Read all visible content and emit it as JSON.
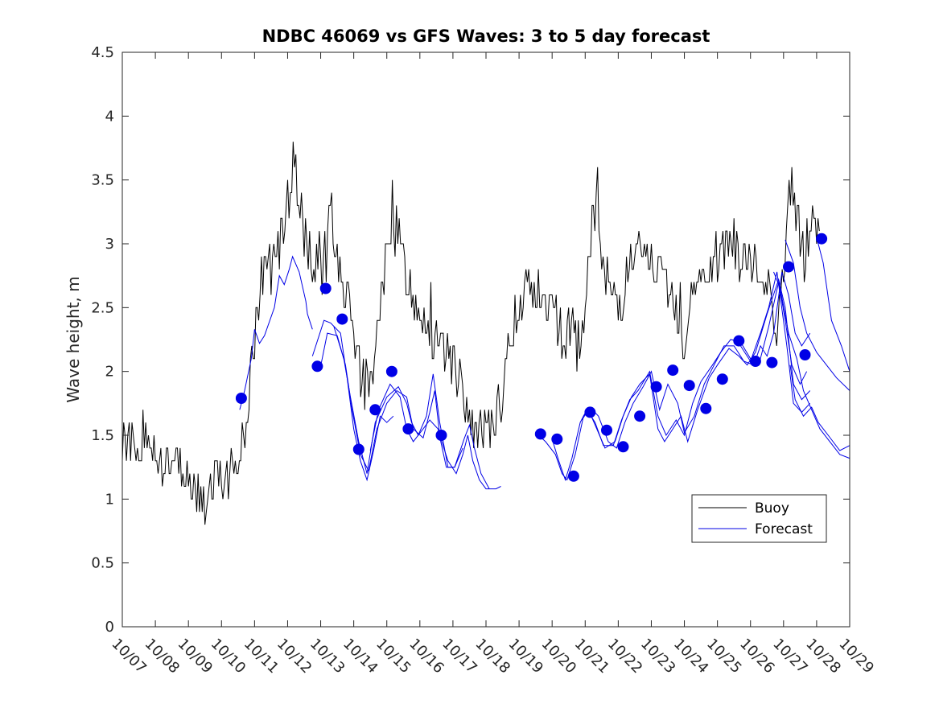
{
  "chart_data": {
    "type": "line",
    "title": "NDBC 46069 vs GFS Waves: 3 to 5 day forecast",
    "xlabel": "",
    "ylabel": "Wave height, m",
    "ylim": [
      0,
      4.5
    ],
    "yticks": [
      "0",
      "0.5",
      "1",
      "1.5",
      "2",
      "2.5",
      "3",
      "3.5",
      "4",
      "4.5"
    ],
    "xlim": [
      0,
      22
    ],
    "xtick_labels": [
      "10/07",
      "10/08",
      "10/09",
      "10/10",
      "10/11",
      "10/12",
      "10/13",
      "10/14",
      "10/15",
      "10/16",
      "10/17",
      "10/18",
      "10/19",
      "10/20",
      "10/21",
      "10/22",
      "10/23",
      "10/24",
      "10/25",
      "10/26",
      "10/27",
      "10/28",
      "10/29"
    ],
    "legend": {
      "position": "lower-right",
      "entries": [
        "Buoy",
        "Forecast"
      ]
    },
    "colors": {
      "buoy": "#000000",
      "forecast": "#0000e6",
      "axes": "#262626"
    },
    "buoy": {
      "name": "Buoy",
      "anchors": [
        [
          0,
          1.45
        ],
        [
          0.3,
          1.45
        ],
        [
          0.6,
          1.4
        ],
        [
          1,
          1.35
        ],
        [
          1.4,
          1.3
        ],
        [
          1.7,
          1.25
        ],
        [
          2,
          1.2
        ],
        [
          2.3,
          1.1
        ],
        [
          2.5,
          1.0
        ],
        [
          2.8,
          1.15
        ],
        [
          3.2,
          1.2
        ],
        [
          3.5,
          1.3
        ],
        [
          3.7,
          1.55
        ],
        [
          3.9,
          2.0
        ],
        [
          4.1,
          2.5
        ],
        [
          4.4,
          2.8
        ],
        [
          4.7,
          2.9
        ],
        [
          5,
          3.3
        ],
        [
          5.2,
          3.65
        ],
        [
          5.4,
          3.2
        ],
        [
          5.6,
          2.95
        ],
        [
          5.9,
          2.85
        ],
        [
          6.1,
          2.7
        ],
        [
          6.3,
          3.3
        ],
        [
          6.5,
          2.9
        ],
        [
          6.8,
          2.6
        ],
        [
          7.0,
          2.3
        ],
        [
          7.2,
          1.9
        ],
        [
          7.5,
          1.85
        ],
        [
          7.7,
          2.3
        ],
        [
          8.0,
          2.9
        ],
        [
          8.3,
          3.1
        ],
        [
          8.5,
          2.9
        ],
        [
          8.8,
          2.6
        ],
        [
          9.1,
          2.5
        ],
        [
          9.4,
          2.2
        ],
        [
          9.7,
          2.2
        ],
        [
          10.0,
          2.05
        ],
        [
          10.3,
          1.8
        ],
        [
          10.6,
          1.5
        ],
        [
          10.9,
          1.5
        ],
        [
          11.2,
          1.6
        ],
        [
          11.5,
          1.85
        ],
        [
          11.8,
          2.4
        ],
        [
          12.1,
          2.6
        ],
        [
          12.4,
          2.7
        ],
        [
          12.7,
          2.55
        ],
        [
          13.0,
          2.5
        ],
        [
          13.3,
          2.3
        ],
        [
          13.6,
          2.3
        ],
        [
          13.9,
          2.15
        ],
        [
          14.1,
          2.8
        ],
        [
          14.3,
          3.3
        ],
        [
          14.5,
          2.8
        ],
        [
          14.8,
          2.6
        ],
        [
          15.0,
          2.5
        ],
        [
          15.3,
          2.8
        ],
        [
          15.6,
          2.9
        ],
        [
          15.9,
          2.85
        ],
        [
          16.2,
          2.8
        ],
        [
          16.5,
          2.6
        ],
        [
          16.8,
          2.4
        ],
        [
          17.0,
          2.15
        ],
        [
          17.2,
          2.7
        ],
        [
          17.5,
          2.7
        ],
        [
          17.8,
          2.8
        ],
        [
          18.1,
          2.9
        ],
        [
          18.4,
          3.0
        ],
        [
          18.7,
          2.9
        ],
        [
          19.0,
          2.85
        ],
        [
          19.3,
          2.75
        ],
        [
          19.6,
          2.7
        ],
        [
          19.8,
          2.4
        ],
        [
          20.0,
          2.8
        ],
        [
          20.2,
          3.5
        ],
        [
          20.4,
          3.2
        ],
        [
          20.6,
          2.9
        ],
        [
          20.9,
          3.3
        ],
        [
          21.1,
          3.0
        ]
      ],
      "noise": 0.2
    },
    "forecast_segments": [
      [
        [
          3.55,
          1.7
        ],
        [
          3.7,
          1.85
        ],
        [
          3.9,
          2.1
        ],
        [
          4.0,
          2.33
        ],
        [
          4.15,
          2.22
        ],
        [
          4.3,
          2.28
        ],
        [
          4.6,
          2.5
        ],
        [
          4.75,
          2.75
        ],
        [
          4.9,
          2.68
        ],
        [
          5.05,
          2.8
        ],
        [
          5.15,
          2.9
        ],
        [
          5.35,
          2.78
        ],
        [
          5.55,
          2.55
        ],
        [
          5.6,
          2.45
        ],
        [
          5.75,
          2.33
        ]
      ],
      [
        [
          5.75,
          2.12
        ],
        [
          6.1,
          2.4
        ],
        [
          6.3,
          2.38
        ],
        [
          6.6,
          2.3
        ],
        [
          6.8,
          1.95
        ],
        [
          7.0,
          1.55
        ],
        [
          7.2,
          1.3
        ],
        [
          7.4,
          1.15
        ],
        [
          7.6,
          1.38
        ],
        [
          7.8,
          1.65
        ],
        [
          8.0,
          1.6
        ],
        [
          8.2,
          1.65
        ]
      ],
      [
        [
          6.0,
          2.04
        ],
        [
          6.2,
          2.3
        ],
        [
          6.5,
          2.28
        ],
        [
          6.75,
          2.05
        ],
        [
          6.95,
          1.7
        ],
        [
          7.2,
          1.35
        ],
        [
          7.45,
          1.22
        ],
        [
          7.7,
          1.55
        ],
        [
          8.0,
          1.75
        ],
        [
          8.3,
          1.85
        ],
        [
          8.6,
          1.8
        ],
        [
          8.8,
          1.55
        ],
        [
          9.1,
          1.48
        ],
        [
          9.3,
          1.68
        ],
        [
          9.45,
          1.85
        ],
        [
          9.6,
          1.5
        ],
        [
          9.85,
          1.3
        ],
        [
          10.1,
          1.2
        ],
        [
          10.3,
          1.35
        ],
        [
          10.45,
          1.5
        ],
        [
          10.6,
          1.3
        ],
        [
          10.8,
          1.15
        ],
        [
          11.0,
          1.08
        ],
        [
          11.3,
          1.08
        ],
        [
          11.45,
          1.1
        ]
      ],
      [
        [
          6.4,
          2.35
        ],
        [
          6.7,
          2.1
        ],
        [
          6.9,
          1.8
        ],
        [
          7.15,
          1.45
        ],
        [
          7.4,
          1.2
        ],
        [
          7.65,
          1.6
        ],
        [
          8.0,
          1.8
        ],
        [
          8.35,
          1.88
        ],
        [
          8.6,
          1.75
        ],
        [
          8.75,
          1.6
        ],
        [
          8.95,
          1.5
        ],
        [
          9.2,
          1.65
        ],
        [
          9.4,
          1.98
        ],
        [
          9.6,
          1.6
        ],
        [
          9.85,
          1.25
        ],
        [
          10.05,
          1.25
        ],
        [
          10.35,
          1.48
        ],
        [
          10.5,
          1.58
        ],
        [
          10.65,
          1.4
        ],
        [
          10.85,
          1.2
        ],
        [
          11.1,
          1.08
        ]
      ],
      [
        [
          7.5,
          1.38
        ],
        [
          7.75,
          1.7
        ],
        [
          8.1,
          1.9
        ],
        [
          8.4,
          1.8
        ],
        [
          8.6,
          1.55
        ],
        [
          8.8,
          1.45
        ],
        [
          9.1,
          1.55
        ],
        [
          9.3,
          1.62
        ],
        [
          9.55,
          1.55
        ],
        [
          9.8,
          1.25
        ],
        [
          10.05,
          1.25
        ],
        [
          10.3,
          1.4
        ]
      ],
      [
        [
          12.5,
          1.52
        ],
        [
          12.8,
          1.45
        ],
        [
          13.1,
          1.35
        ],
        [
          13.3,
          1.2
        ],
        [
          13.45,
          1.15
        ],
        [
          13.7,
          1.35
        ],
        [
          13.95,
          1.65
        ],
        [
          14.15,
          1.72
        ],
        [
          14.4,
          1.65
        ],
        [
          14.7,
          1.45
        ],
        [
          14.95,
          1.4
        ],
        [
          15.2,
          1.6
        ],
        [
          15.45,
          1.75
        ],
        [
          15.75,
          1.88
        ],
        [
          16.0,
          2.0
        ],
        [
          16.25,
          1.7
        ],
        [
          16.5,
          1.9
        ],
        [
          16.8,
          1.75
        ],
        [
          17.0,
          1.52
        ],
        [
          17.3,
          1.65
        ],
        [
          17.6,
          1.9
        ],
        [
          17.9,
          2.05
        ],
        [
          18.2,
          2.2
        ],
        [
          18.5,
          2.2
        ],
        [
          18.8,
          2.08
        ],
        [
          19.1,
          2.05
        ],
        [
          19.3,
          2.2
        ],
        [
          19.5,
          2.12
        ],
        [
          19.7,
          2.3
        ],
        [
          19.95,
          2.78
        ],
        [
          20.15,
          2.6
        ],
        [
          20.35,
          2.3
        ],
        [
          20.55,
          2.2
        ],
        [
          20.8,
          2.3
        ]
      ],
      [
        [
          13.0,
          1.47
        ],
        [
          13.2,
          1.3
        ],
        [
          13.4,
          1.15
        ],
        [
          13.6,
          1.32
        ],
        [
          13.85,
          1.6
        ],
        [
          14.05,
          1.7
        ],
        [
          14.3,
          1.6
        ],
        [
          14.55,
          1.42
        ],
        [
          14.85,
          1.42
        ],
        [
          15.1,
          1.62
        ],
        [
          15.35,
          1.78
        ],
        [
          15.6,
          1.85
        ],
        [
          15.95,
          2.0
        ],
        [
          16.2,
          1.65
        ],
        [
          16.45,
          1.5
        ],
        [
          16.75,
          1.62
        ],
        [
          17.0,
          1.5
        ],
        [
          17.25,
          1.75
        ],
        [
          17.5,
          1.92
        ],
        [
          17.85,
          2.05
        ],
        [
          18.1,
          2.15
        ],
        [
          18.4,
          2.25
        ],
        [
          18.7,
          2.23
        ],
        [
          19.0,
          2.1
        ],
        [
          19.25,
          2.05
        ],
        [
          19.55,
          2.35
        ],
        [
          19.85,
          2.7
        ],
        [
          20.05,
          2.4
        ],
        [
          20.25,
          2.05
        ],
        [
          20.5,
          1.9
        ],
        [
          20.7,
          2.0
        ]
      ],
      [
        [
          13.9,
          1.62
        ],
        [
          14.1,
          1.7
        ],
        [
          14.35,
          1.55
        ],
        [
          14.6,
          1.4
        ],
        [
          14.9,
          1.45
        ],
        [
          15.15,
          1.65
        ],
        [
          15.4,
          1.8
        ],
        [
          15.65,
          1.9
        ],
        [
          15.95,
          1.98
        ],
        [
          16.2,
          1.55
        ],
        [
          16.4,
          1.45
        ],
        [
          16.65,
          1.55
        ],
        [
          16.9,
          1.65
        ],
        [
          17.1,
          1.45
        ],
        [
          17.4,
          1.7
        ],
        [
          17.75,
          1.95
        ],
        [
          18.0,
          2.05
        ],
        [
          18.35,
          2.18
        ],
        [
          18.65,
          2.12
        ],
        [
          18.9,
          2.05
        ],
        [
          19.15,
          2.15
        ],
        [
          19.5,
          2.45
        ],
        [
          19.85,
          2.72
        ],
        [
          20.05,
          2.5
        ],
        [
          20.3,
          1.9
        ],
        [
          20.55,
          1.78
        ],
        [
          20.8,
          1.85
        ]
      ],
      [
        [
          18.7,
          2.2
        ],
        [
          19.0,
          2.08
        ],
        [
          19.3,
          2.3
        ],
        [
          19.55,
          2.5
        ],
        [
          19.8,
          2.78
        ],
        [
          20.1,
          2.2
        ],
        [
          20.3,
          1.75
        ],
        [
          20.55,
          1.68
        ],
        [
          20.8,
          1.75
        ]
      ],
      [
        [
          19.7,
          2.78
        ],
        [
          19.9,
          2.65
        ],
        [
          20.15,
          2.3
        ],
        [
          20.4,
          2.1
        ],
        [
          20.6,
          1.85
        ],
        [
          20.85,
          1.7
        ],
        [
          21.1,
          1.55
        ],
        [
          21.4,
          1.45
        ],
        [
          21.7,
          1.35
        ],
        [
          22.0,
          1.32
        ]
      ],
      [
        [
          20.2,
          2.05
        ],
        [
          20.35,
          1.78
        ],
        [
          20.6,
          1.65
        ],
        [
          20.85,
          1.72
        ],
        [
          21.05,
          1.6
        ],
        [
          21.35,
          1.5
        ],
        [
          21.7,
          1.38
        ],
        [
          22.0,
          1.42
        ]
      ],
      [
        [
          20.05,
          3.03
        ],
        [
          20.3,
          2.85
        ],
        [
          20.5,
          2.5
        ],
        [
          20.7,
          2.3
        ],
        [
          21.0,
          2.15
        ],
        [
          21.3,
          2.05
        ],
        [
          21.6,
          1.95
        ],
        [
          22.0,
          1.85
        ]
      ],
      [
        [
          21.0,
          3.05
        ],
        [
          21.2,
          2.85
        ],
        [
          21.45,
          2.4
        ],
        [
          21.75,
          2.2
        ],
        [
          22.0,
          2.0
        ]
      ]
    ],
    "forecast_markers": [
      [
        3.6,
        1.79
      ],
      [
        5.9,
        2.04
      ],
      [
        6.15,
        2.65
      ],
      [
        6.65,
        2.41
      ],
      [
        7.15,
        1.39
      ],
      [
        7.65,
        1.7
      ],
      [
        8.15,
        2.0
      ],
      [
        8.65,
        1.55
      ],
      [
        9.65,
        1.5
      ],
      [
        12.65,
        1.51
      ],
      [
        13.15,
        1.47
      ],
      [
        13.65,
        1.18
      ],
      [
        14.15,
        1.68
      ],
      [
        14.65,
        1.54
      ],
      [
        15.15,
        1.41
      ],
      [
        15.65,
        1.65
      ],
      [
        16.15,
        1.88
      ],
      [
        16.65,
        2.01
      ],
      [
        17.15,
        1.89
      ],
      [
        17.65,
        1.71
      ],
      [
        18.15,
        1.94
      ],
      [
        18.65,
        2.24
      ],
      [
        19.15,
        2.08
      ],
      [
        19.65,
        2.07
      ],
      [
        20.15,
        2.82
      ],
      [
        20.65,
        2.13
      ],
      [
        21.15,
        3.04
      ]
    ]
  }
}
